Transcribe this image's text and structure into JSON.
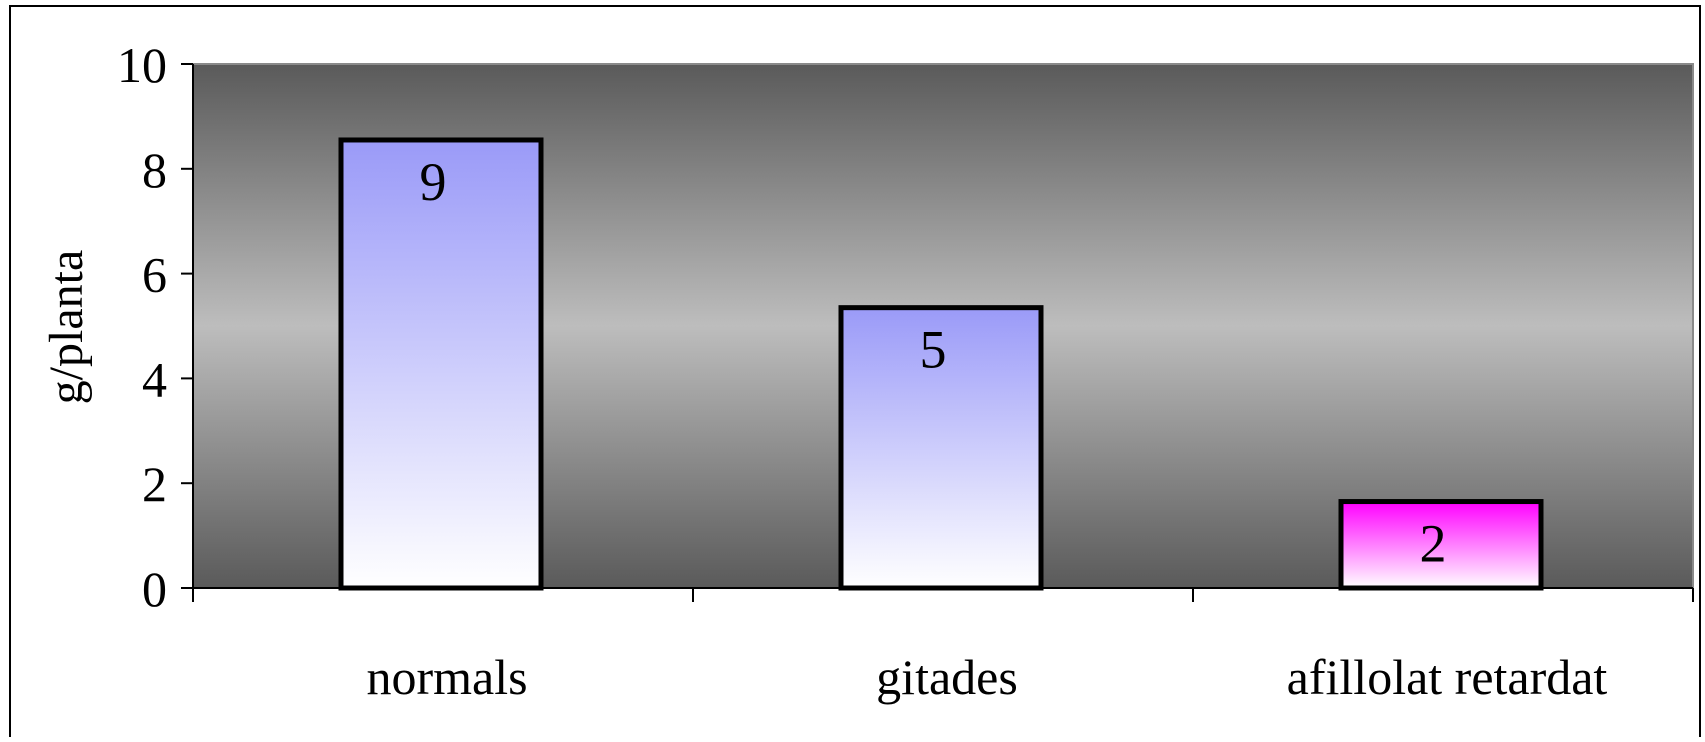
{
  "chart_data": {
    "type": "bar",
    "title": "",
    "xlabel": "",
    "ylabel": "g/planta",
    "ylim": [
      0,
      10
    ],
    "yticks": [
      0,
      2,
      4,
      6,
      8,
      10
    ],
    "categories": [
      "normals",
      "gitades",
      "afillolat retardat"
    ],
    "values": [
      8.55,
      5.35,
      1.65
    ],
    "data_labels": [
      "9",
      "5",
      "2"
    ],
    "bar_colors": [
      {
        "top": "#9a9af8",
        "bottom": "#ffffff"
      },
      {
        "top": "#9a9af8",
        "bottom": "#ffffff"
      },
      {
        "top": "#ff00ff",
        "bottom": "#ffffff"
      }
    ],
    "plot_background": {
      "edge": "#5a5a5a",
      "center": "#bdbdbd"
    },
    "grid": false,
    "legend": "none"
  }
}
